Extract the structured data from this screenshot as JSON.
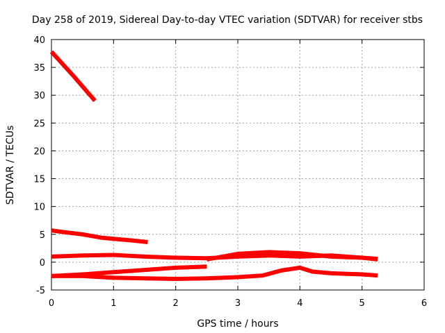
{
  "chart_data": {
    "type": "line",
    "title": "Day 258 of 2019, Sidereal Day-to-day VTEC variation (SDTVAR) for receiver stbs",
    "xlabel": "GPS time / hours",
    "ylabel": "SDTVAR / TECUs",
    "xlim": [
      0,
      6
    ],
    "ylim": [
      -5,
      40
    ],
    "xticks": [
      0,
      1,
      2,
      3,
      4,
      5,
      6
    ],
    "yticks": [
      -5,
      0,
      5,
      10,
      15,
      20,
      25,
      30,
      35,
      40
    ],
    "grid": true,
    "legend": "none",
    "color": "#ff0000",
    "series": [
      {
        "x": [
          0.0,
          0.35,
          0.7
        ],
        "y": [
          37.8,
          33.5,
          29.0
        ]
      },
      {
        "x": [
          0.0,
          0.2,
          0.5,
          0.8,
          1.0,
          1.3,
          1.55
        ],
        "y": [
          5.7,
          5.4,
          5.0,
          4.4,
          4.2,
          3.9,
          3.6
        ]
      },
      {
        "x": [
          0.0,
          0.5,
          1.0,
          1.5,
          2.0,
          2.5,
          3.0,
          3.5,
          4.0,
          4.5,
          5.0,
          5.25
        ],
        "y": [
          1.0,
          1.2,
          1.3,
          1.0,
          0.8,
          0.7,
          1.0,
          1.2,
          1.0,
          1.2,
          0.8,
          0.6
        ]
      },
      {
        "x": [
          2.5,
          3.0,
          3.5,
          4.0,
          4.5,
          5.0,
          5.25
        ],
        "y": [
          0.5,
          1.5,
          1.8,
          1.6,
          1.0,
          0.8,
          0.5
        ]
      },
      {
        "x": [
          0.0,
          0.5,
          1.0,
          1.5,
          2.0,
          2.5
        ],
        "y": [
          -2.5,
          -2.2,
          -1.8,
          -1.4,
          -1.0,
          -0.8
        ]
      },
      {
        "x": [
          0.0,
          0.5,
          1.0,
          1.5,
          2.0,
          2.5,
          3.0,
          3.4,
          3.7,
          4.0,
          4.2,
          4.5,
          5.0,
          5.25
        ],
        "y": [
          -2.5,
          -2.5,
          -2.8,
          -2.9,
          -3.0,
          -2.9,
          -2.7,
          -2.4,
          -1.5,
          -1.0,
          -1.7,
          -2.0,
          -2.2,
          -2.4
        ]
      }
    ]
  }
}
